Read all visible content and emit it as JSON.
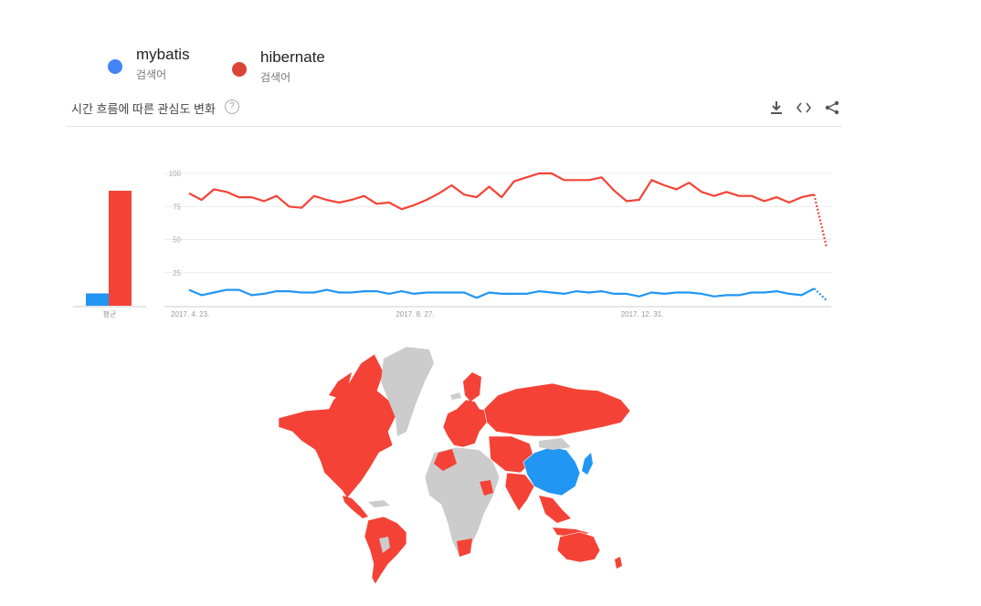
{
  "legend": [
    {
      "name": "mybatis",
      "sub": "검색어",
      "color": "#4285f4"
    },
    {
      "name": "hibernate",
      "sub": "검색어",
      "color": "#db4437"
    }
  ],
  "section": {
    "title": "시간 흐름에 따른 관심도 변화",
    "help_glyph": "?"
  },
  "toolbar": [
    {
      "name": "download-icon",
      "glyph": "⬇"
    },
    {
      "name": "embed-icon",
      "glyph": "<>"
    },
    {
      "name": "share-icon",
      "glyph": "⋖"
    }
  ],
  "chart_data": [
    {
      "type": "bar",
      "categories": [
        "평균"
      ],
      "series": [
        {
          "name": "mybatis",
          "values": [
            9
          ],
          "color": "#2196f3"
        },
        {
          "name": "hibernate",
          "values": [
            84
          ],
          "color": "#f44336"
        }
      ],
      "ylim": [
        0,
        100
      ]
    },
    {
      "type": "line",
      "ylim": [
        0,
        100
      ],
      "yticks": [
        25,
        50,
        75,
        100
      ],
      "xticks": [
        {
          "index": 0,
          "label": "2017. 4. 23."
        },
        {
          "index": 18,
          "label": "2017. 8. 27."
        },
        {
          "index": 36,
          "label": "2017. 12. 31."
        }
      ],
      "partial_last_point": true,
      "series": [
        {
          "name": "mybatis",
          "color": "#2196f3",
          "values": [
            12,
            8,
            10,
            12,
            12,
            8,
            9,
            11,
            11,
            10,
            10,
            12,
            10,
            10,
            11,
            11,
            9,
            11,
            9,
            10,
            10,
            10,
            10,
            6,
            10,
            9,
            9,
            9,
            11,
            10,
            9,
            11,
            10,
            11,
            9,
            9,
            7,
            10,
            9,
            10,
            10,
            9,
            7,
            8,
            8,
            10,
            10,
            11,
            9,
            8,
            13,
            4
          ]
        },
        {
          "name": "hibernate",
          "color": "#f44336",
          "values": [
            85,
            80,
            88,
            86,
            82,
            82,
            79,
            83,
            75,
            74,
            83,
            80,
            78,
            80,
            83,
            77,
            78,
            73,
            76,
            80,
            85,
            91,
            84,
            82,
            90,
            82,
            94,
            97,
            100,
            100,
            95,
            95,
            95,
            97,
            87,
            79,
            80,
            95,
            91,
            88,
            93,
            86,
            83,
            86,
            83,
            83,
            79,
            82,
            78,
            82,
            84,
            44
          ]
        }
      ]
    }
  ],
  "map_data": {
    "series": [
      {
        "name": "mybatis",
        "color": "#2196f3",
        "regions": [
          "China"
        ]
      },
      {
        "name": "hibernate",
        "color": "#f44336",
        "regions": [
          "North America",
          "South America",
          "Europe",
          "Russia",
          "India",
          "Australia",
          "Southeast Asia"
        ]
      }
    ],
    "no_data_color": "#cccccc"
  }
}
